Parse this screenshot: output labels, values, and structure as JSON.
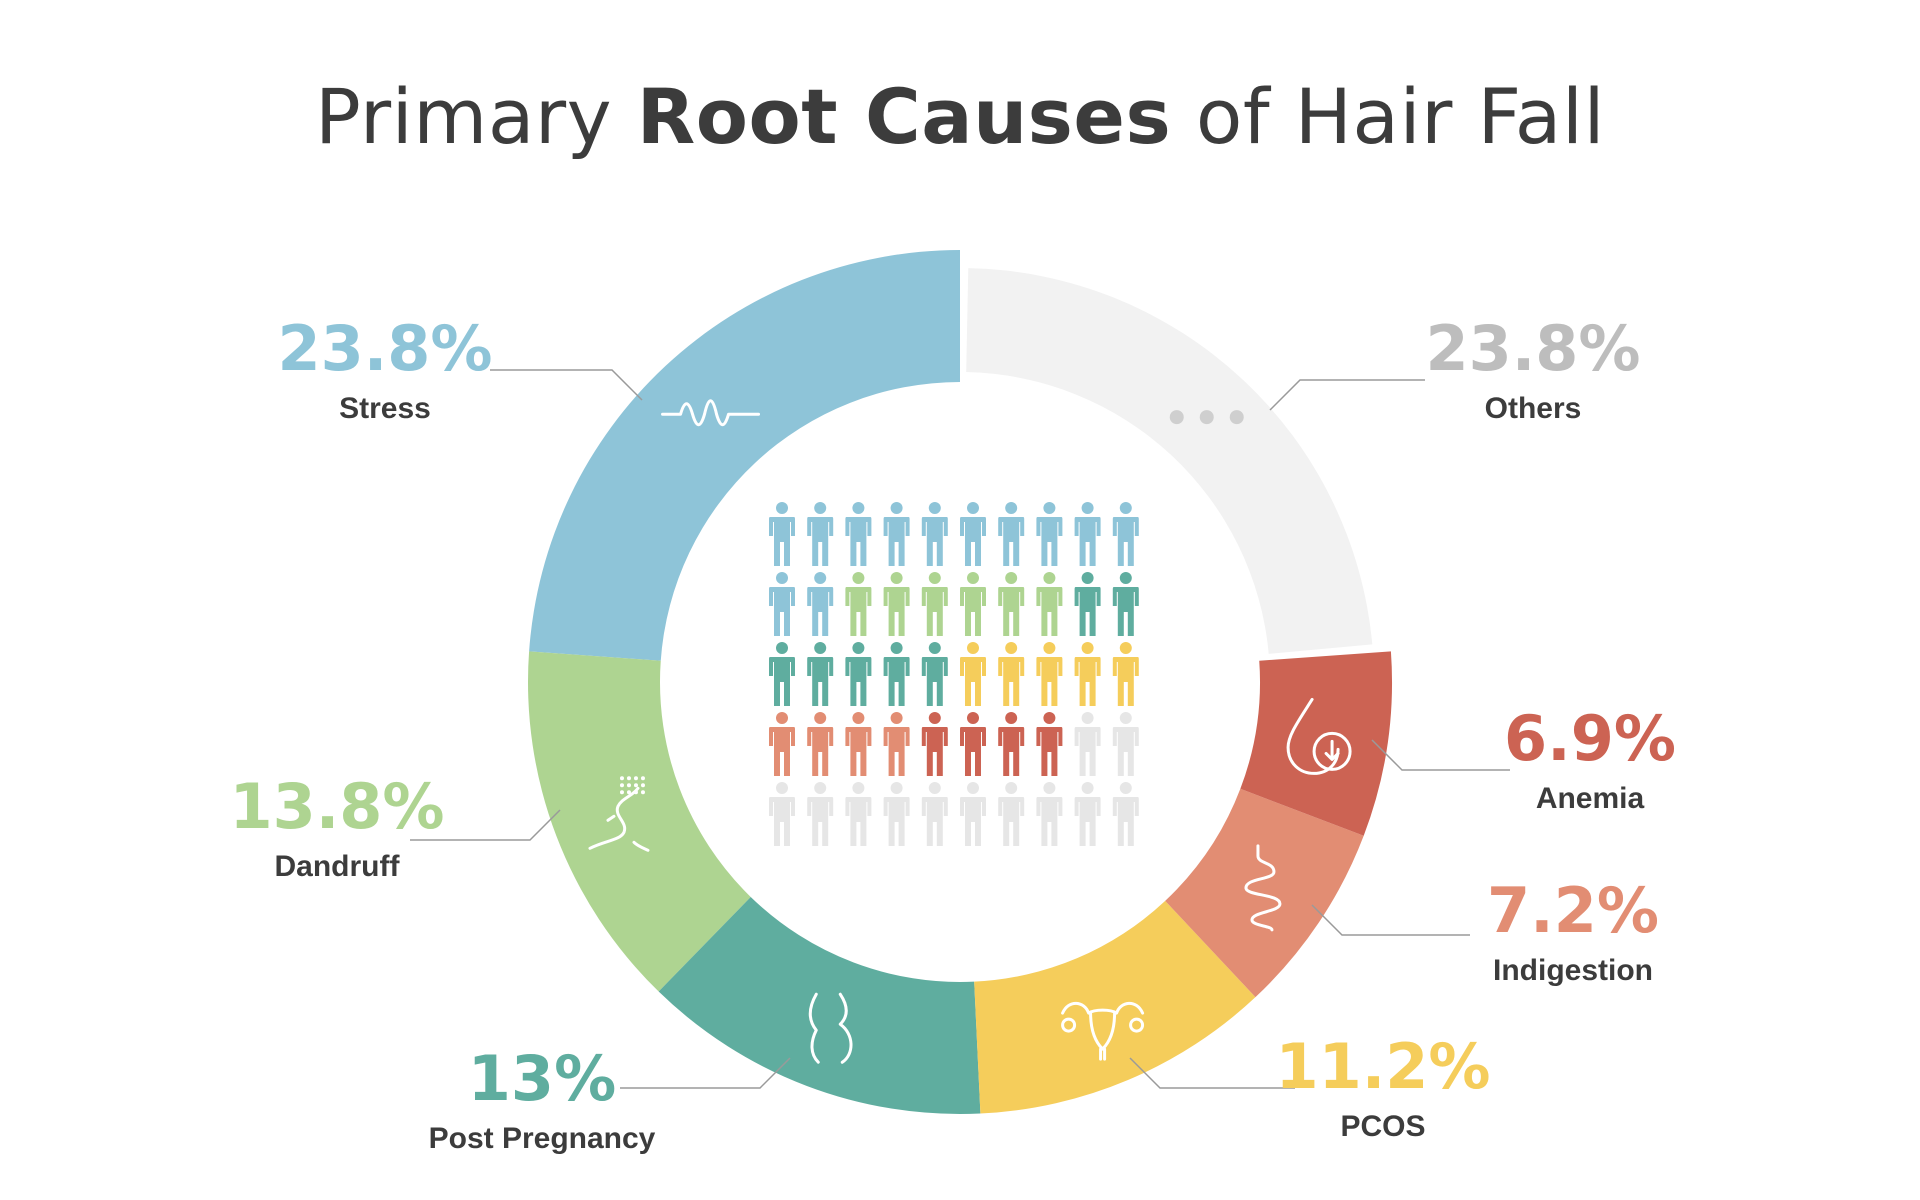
{
  "title": {
    "prefix": "Primary ",
    "bold": "Root Causes",
    "suffix": " of Hair Fall"
  },
  "chart_data": {
    "type": "pie",
    "variant": "donut",
    "title": "Primary Root Causes of Hair Fall",
    "slices": [
      {
        "label": "Stress",
        "value": 23.8,
        "display": "23.8%",
        "color": "#8ec4d8",
        "icon": "pulse-wave-icon"
      },
      {
        "label": "Dandruff",
        "value": 13.8,
        "display": "13.8%",
        "color": "#aed491",
        "icon": "head-dandruff-icon"
      },
      {
        "label": "Post Pregnancy",
        "value": 13,
        "display": "13%",
        "color": "#5fad9f",
        "icon": "pregnant-belly-icon"
      },
      {
        "label": "PCOS",
        "value": 11.2,
        "display": "11.2%",
        "color": "#f5cd5b",
        "icon": "uterus-icon"
      },
      {
        "label": "Indigestion",
        "value": 7.2,
        "display": "7.2%",
        "color": "#e28d73",
        "icon": "intestine-icon"
      },
      {
        "label": "Anemia",
        "value": 6.9,
        "display": "6.9%",
        "color": "#cc6353",
        "icon": "blood-drop-icon"
      },
      {
        "label": "Others",
        "value": 23.8,
        "display": "23.8%",
        "color": "#f2f2f2",
        "label_color": "#bdbdbd",
        "icon": "ellipsis-icon"
      }
    ],
    "people_grid": {
      "rows": 5,
      "cols": 10,
      "colors": [
        "#8ec4d8",
        "#8ec4d8",
        "#8ec4d8",
        "#8ec4d8",
        "#8ec4d8",
        "#8ec4d8",
        "#8ec4d8",
        "#8ec4d8",
        "#8ec4d8",
        "#8ec4d8",
        "#8ec4d8",
        "#8ec4d8",
        "#aed491",
        "#aed491",
        "#aed491",
        "#aed491",
        "#aed491",
        "#aed491",
        "#5fad9f",
        "#5fad9f",
        "#5fad9f",
        "#5fad9f",
        "#5fad9f",
        "#5fad9f",
        "#5fad9f",
        "#f5cd5b",
        "#f5cd5b",
        "#f5cd5b",
        "#f5cd5b",
        "#f5cd5b",
        "#e28d73",
        "#e28d73",
        "#e28d73",
        "#e28d73",
        "#cc6353",
        "#cc6353",
        "#cc6353",
        "#cc6353",
        "#e6e6e6",
        "#e6e6e6",
        "#e6e6e6",
        "#e6e6e6",
        "#e6e6e6",
        "#e6e6e6",
        "#e6e6e6",
        "#e6e6e6",
        "#e6e6e6",
        "#e6e6e6",
        "#e6e6e6",
        "#e6e6e6"
      ]
    }
  }
}
